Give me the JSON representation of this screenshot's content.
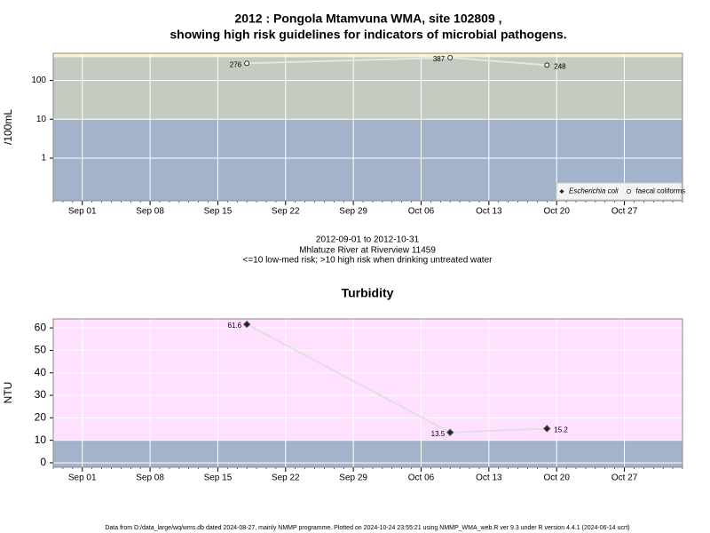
{
  "chart_data": [
    {
      "type": "line",
      "title": "2012 : Pongola Mtamvuna WMA, site 102809 ,",
      "subtitle": "showing high risk guidelines for indicators of microbial pathogens.",
      "ylabel": "/100mL",
      "log_y": true,
      "ylim": [
        0.08,
        500
      ],
      "yticks": [
        1,
        10,
        100
      ],
      "xlim": [
        "Aug 29",
        "Nov 02"
      ],
      "xticks": [
        "Sep 01",
        "Sep 08",
        "Sep 15",
        "Sep 22",
        "Sep 29",
        "Oct 06",
        "Oct 13",
        "Oct 20",
        "Oct 27"
      ],
      "x": [
        "Sep 18",
        "Oct 09",
        "Oct 19"
      ],
      "series": [
        {
          "name": "Escherichia coli",
          "color": "#333333",
          "marker": "diamond",
          "values": [
            null,
            null,
            null
          ]
        },
        {
          "name": "faecal coliforms",
          "color": "#e6e6e6",
          "marker": "circle",
          "values": [
            276,
            387,
            248
          ]
        }
      ],
      "bands": [
        {
          "to": 10,
          "color": "#a3b3cc"
        },
        {
          "from": 10,
          "to": 400,
          "color": "#c4cbc1"
        },
        {
          "from": 400,
          "color": "#fcf5c8"
        }
      ],
      "grid": true,
      "legend": "bottom-right",
      "annotations": [
        "2012-09-01 to 2012-10-31",
        "Mhlatuze River at Riverview 11459",
        "<=10 low-med risk; >10 high risk when drinking untreated water"
      ]
    },
    {
      "type": "line",
      "title": "Turbidity",
      "ylabel": "NTU",
      "log_y": false,
      "ylim": [
        -2,
        64
      ],
      "yticks": [
        0,
        10,
        20,
        30,
        40,
        50,
        60
      ],
      "xlim": [
        "Aug 29",
        "Nov 02"
      ],
      "xticks": [
        "Sep 01",
        "Sep 08",
        "Sep 15",
        "Sep 22",
        "Sep 29",
        "Oct 06",
        "Oct 13",
        "Oct 20",
        "Oct 27"
      ],
      "x": [
        "Sep 18",
        "Oct 09",
        "Oct 19"
      ],
      "series": [
        {
          "color": "#e0e0e0",
          "marker": "diamond",
          "values": [
            61.6,
            13.5,
            15.2
          ]
        }
      ],
      "bands": [
        {
          "to": 10,
          "color": "#a3b3cc"
        },
        {
          "from": 10,
          "color": "#ffe0ff"
        }
      ],
      "grid": true
    }
  ],
  "footer": "Data from D:/data_large/wq/wms.db dated 2024-08-27, mainly NMMP programme. Plotted on 2024-10-24 23:55:21 using NMMP_WMA_web.R ver 9.3 under R version 4.4.1 (2024-06-14 ucrt)"
}
